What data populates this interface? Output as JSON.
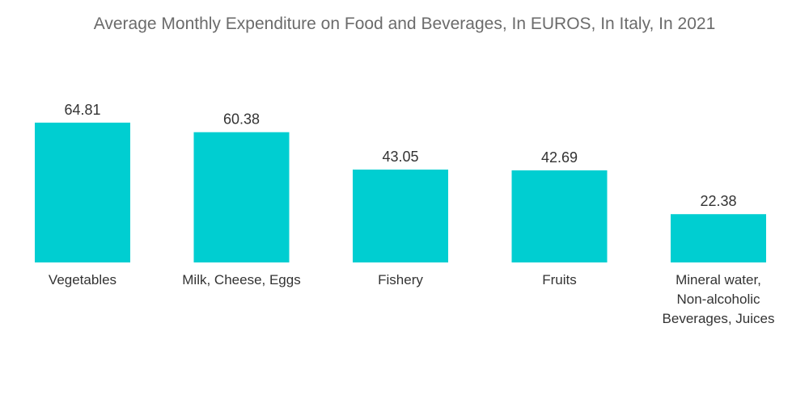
{
  "chart_data": {
    "type": "bar",
    "title": "Average Monthly Expenditure on Food and Beverages, In EUROS, In Italy, In 2021",
    "categories": [
      "Vegetables",
      "Milk, Cheese, Eggs",
      "Fishery",
      "Fruits",
      "Mineral water, Non-alcoholic Beverages, Juices"
    ],
    "category_lines": [
      [
        "Vegetables"
      ],
      [
        "Milk, Cheese, Eggs"
      ],
      [
        "Fishery"
      ],
      [
        "Fruits"
      ],
      [
        "Mineral water,",
        "Non-alcoholic",
        "Beverages, Juices"
      ]
    ],
    "values": [
      64.81,
      60.38,
      43.05,
      42.69,
      22.38
    ],
    "value_labels": [
      "64.81",
      "60.38",
      "43.05",
      "42.69",
      "22.38"
    ],
    "xlabel": "",
    "ylabel": "",
    "ylim": [
      0,
      70
    ],
    "grid": false,
    "legend": "none",
    "bar_color": "#00CED1"
  }
}
